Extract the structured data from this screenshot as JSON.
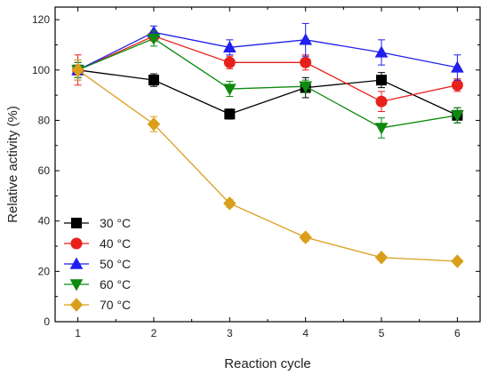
{
  "chart_data": {
    "type": "line",
    "xlabel": "Reaction cycle",
    "ylabel": "Relative activity (%)",
    "x": [
      1,
      2,
      3,
      4,
      5,
      6
    ],
    "xlim": [
      0.7,
      6.3
    ],
    "ylim": [
      0,
      125
    ],
    "xticks": [
      1,
      2,
      3,
      4,
      5,
      6
    ],
    "yticks": [
      0,
      20,
      40,
      60,
      80,
      100,
      120
    ],
    "grid": false,
    "legend": "bottom-left",
    "series": [
      {
        "name": "30 °C",
        "color": "#000000",
        "marker": "square",
        "values": [
          100,
          96,
          82.5,
          93,
          96,
          82
        ],
        "errors": [
          3,
          2.5,
          2,
          4,
          3,
          3
        ]
      },
      {
        "name": "40 °C",
        "color": "#e8201c",
        "marker": "circle",
        "values": [
          100,
          113.5,
          103,
          103,
          87.5,
          94
        ],
        "errors": [
          6,
          2,
          2.5,
          3,
          4,
          2.5
        ]
      },
      {
        "name": "50 °C",
        "color": "#1f1fee",
        "marker": "triangle-up",
        "values": [
          100,
          115,
          109,
          112,
          107,
          101
        ],
        "errors": [
          4,
          2.5,
          3,
          6.5,
          5,
          5
        ]
      },
      {
        "name": "60 °C",
        "color": "#0e8a0e",
        "marker": "triangle-down",
        "values": [
          100,
          112.5,
          92.5,
          93.5,
          77,
          82
        ],
        "errors": [
          3,
          3,
          3,
          2.5,
          4,
          3
        ]
      },
      {
        "name": "70 °C",
        "color": "#d99e1a",
        "marker": "diamond",
        "values": [
          100,
          78.5,
          47,
          33.5,
          25.5,
          24
        ],
        "errors": [
          4,
          3,
          1.5,
          1.5,
          1,
          1
        ]
      }
    ]
  }
}
